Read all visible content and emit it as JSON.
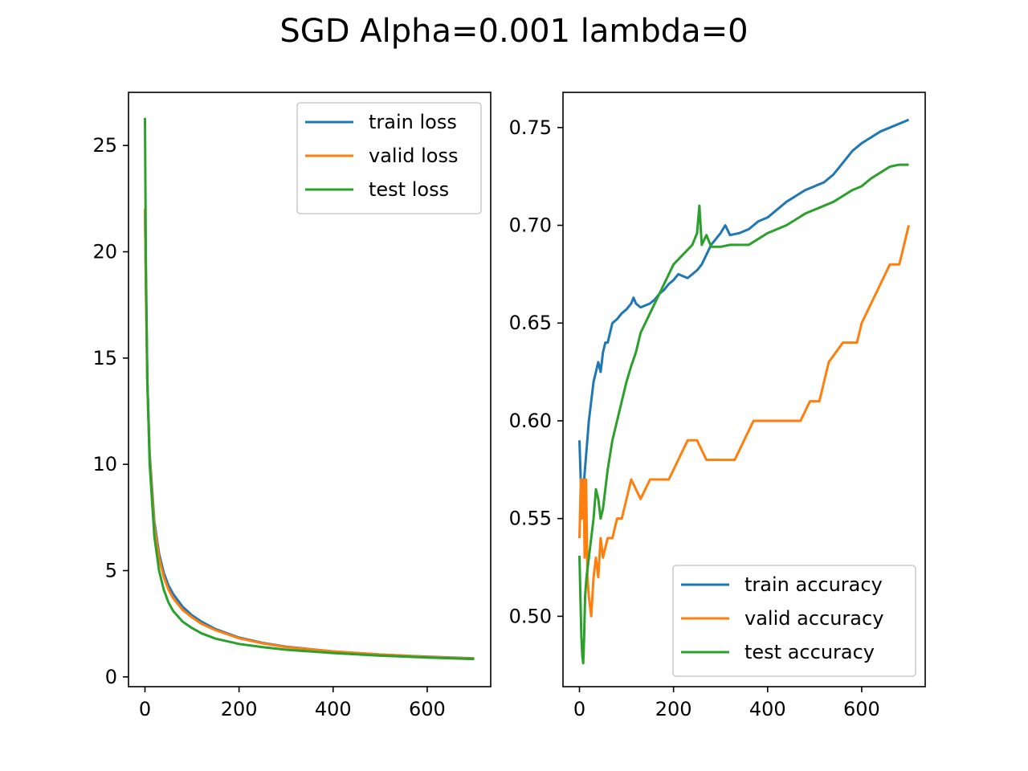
{
  "figure": {
    "title": "SGD Alpha=0.001 lambda=0"
  },
  "colors": {
    "train": "#1f77b4",
    "valid": "#ff7f0e",
    "test": "#2ca02c"
  },
  "chart_data": [
    {
      "type": "line",
      "title": "",
      "xlabel": "",
      "ylabel": "",
      "xlim": [
        -35,
        735
      ],
      "ylim": [
        -0.46,
        27.5
      ],
      "xticks": [
        0,
        200,
        400,
        600
      ],
      "yticks": [
        0,
        5,
        10,
        15,
        20,
        25
      ],
      "legend": "top-right",
      "grid": false,
      "series": [
        {
          "name": "train loss",
          "color": "#1f77b4",
          "x": [
            0,
            2,
            5,
            10,
            20,
            30,
            40,
            50,
            60,
            80,
            100,
            120,
            150,
            200,
            250,
            300,
            400,
            500,
            600,
            700
          ],
          "y": [
            22.0,
            18.5,
            14.0,
            10.5,
            7.3,
            5.8,
            4.9,
            4.3,
            3.9,
            3.3,
            2.9,
            2.6,
            2.25,
            1.85,
            1.6,
            1.42,
            1.2,
            1.05,
            0.95,
            0.87
          ]
        },
        {
          "name": "valid loss",
          "color": "#ff7f0e",
          "x": [
            0,
            2,
            5,
            10,
            20,
            30,
            40,
            50,
            60,
            80,
            100,
            120,
            150,
            200,
            250,
            300,
            400,
            500,
            600,
            700
          ],
          "y": [
            22.0,
            18.2,
            13.8,
            10.3,
            7.1,
            5.6,
            4.7,
            4.1,
            3.7,
            3.15,
            2.8,
            2.5,
            2.2,
            1.82,
            1.58,
            1.4,
            1.2,
            1.05,
            0.94,
            0.86
          ]
        },
        {
          "name": "test loss",
          "color": "#2ca02c",
          "x": [
            0,
            2,
            5,
            10,
            20,
            30,
            40,
            50,
            60,
            80,
            100,
            120,
            150,
            200,
            250,
            300,
            400,
            500,
            600,
            700
          ],
          "y": [
            26.3,
            19.5,
            14.0,
            10.0,
            6.6,
            5.0,
            4.1,
            3.5,
            3.1,
            2.6,
            2.3,
            2.05,
            1.8,
            1.55,
            1.4,
            1.28,
            1.12,
            1.0,
            0.91,
            0.84
          ]
        }
      ]
    },
    {
      "type": "line",
      "title": "",
      "xlabel": "",
      "ylabel": "",
      "xlim": [
        -35,
        735
      ],
      "ylim": [
        0.464,
        0.768
      ],
      "xticks": [
        0,
        200,
        400,
        600
      ],
      "yticks": [
        0.5,
        0.55,
        0.6,
        0.65,
        0.7,
        0.75
      ],
      "legend": "bottom-right",
      "grid": false,
      "series": [
        {
          "name": "train accuracy",
          "color": "#1f77b4",
          "x": [
            0,
            2,
            4,
            6,
            8,
            10,
            15,
            20,
            25,
            30,
            35,
            40,
            45,
            50,
            55,
            60,
            65,
            70,
            80,
            90,
            100,
            110,
            115,
            120,
            130,
            150,
            160,
            170,
            180,
            190,
            200,
            210,
            230,
            250,
            260,
            270,
            280,
            290,
            300,
            310,
            320,
            340,
            360,
            380,
            400,
            420,
            440,
            460,
            480,
            500,
            520,
            540,
            560,
            580,
            600,
            620,
            640,
            660,
            680,
            700
          ],
          "y": [
            0.59,
            0.575,
            0.56,
            0.565,
            0.57,
            0.57,
            0.585,
            0.6,
            0.61,
            0.62,
            0.625,
            0.63,
            0.625,
            0.635,
            0.64,
            0.64,
            0.645,
            0.65,
            0.652,
            0.655,
            0.657,
            0.66,
            0.663,
            0.66,
            0.658,
            0.66,
            0.662,
            0.665,
            0.667,
            0.67,
            0.672,
            0.675,
            0.673,
            0.677,
            0.68,
            0.685,
            0.69,
            0.693,
            0.696,
            0.7,
            0.695,
            0.696,
            0.698,
            0.702,
            0.704,
            0.708,
            0.712,
            0.715,
            0.718,
            0.72,
            0.722,
            0.726,
            0.732,
            0.738,
            0.742,
            0.745,
            0.748,
            0.75,
            0.752,
            0.754
          ]
        },
        {
          "name": "valid accuracy",
          "color": "#ff7f0e",
          "x": [
            0,
            3,
            5,
            7,
            9,
            11,
            14,
            17,
            20,
            25,
            30,
            35,
            40,
            45,
            50,
            60,
            70,
            80,
            90,
            100,
            110,
            130,
            150,
            170,
            190,
            210,
            230,
            250,
            270,
            290,
            310,
            330,
            350,
            370,
            390,
            410,
            430,
            450,
            470,
            490,
            510,
            520,
            530,
            560,
            590,
            600,
            620,
            640,
            660,
            680,
            690,
            700
          ],
          "y": [
            0.54,
            0.57,
            0.55,
            0.56,
            0.57,
            0.53,
            0.57,
            0.52,
            0.51,
            0.5,
            0.52,
            0.53,
            0.52,
            0.54,
            0.53,
            0.54,
            0.54,
            0.55,
            0.55,
            0.56,
            0.57,
            0.56,
            0.57,
            0.57,
            0.57,
            0.58,
            0.59,
            0.59,
            0.58,
            0.58,
            0.58,
            0.58,
            0.59,
            0.6,
            0.6,
            0.6,
            0.6,
            0.6,
            0.6,
            0.61,
            0.61,
            0.62,
            0.63,
            0.64,
            0.64,
            0.65,
            0.66,
            0.67,
            0.68,
            0.68,
            0.69,
            0.7
          ]
        },
        {
          "name": "test accuracy",
          "color": "#2ca02c",
          "x": [
            0,
            2,
            4,
            6,
            8,
            10,
            12,
            15,
            20,
            25,
            30,
            35,
            40,
            45,
            50,
            55,
            60,
            70,
            80,
            90,
            100,
            110,
            120,
            130,
            140,
            150,
            160,
            170,
            180,
            190,
            200,
            220,
            240,
            250,
            255,
            260,
            270,
            280,
            300,
            320,
            340,
            360,
            380,
            400,
            420,
            440,
            460,
            480,
            500,
            520,
            540,
            560,
            580,
            600,
            620,
            640,
            660,
            680,
            700
          ],
          "y": [
            0.531,
            0.51,
            0.49,
            0.48,
            0.476,
            0.49,
            0.51,
            0.52,
            0.53,
            0.54,
            0.55,
            0.565,
            0.56,
            0.55,
            0.555,
            0.565,
            0.575,
            0.59,
            0.6,
            0.61,
            0.62,
            0.628,
            0.635,
            0.645,
            0.65,
            0.655,
            0.66,
            0.665,
            0.67,
            0.675,
            0.68,
            0.685,
            0.69,
            0.696,
            0.71,
            0.69,
            0.695,
            0.689,
            0.689,
            0.69,
            0.69,
            0.69,
            0.693,
            0.696,
            0.698,
            0.7,
            0.703,
            0.706,
            0.708,
            0.71,
            0.712,
            0.715,
            0.718,
            0.72,
            0.724,
            0.727,
            0.73,
            0.731,
            0.731
          ]
        }
      ]
    }
  ]
}
